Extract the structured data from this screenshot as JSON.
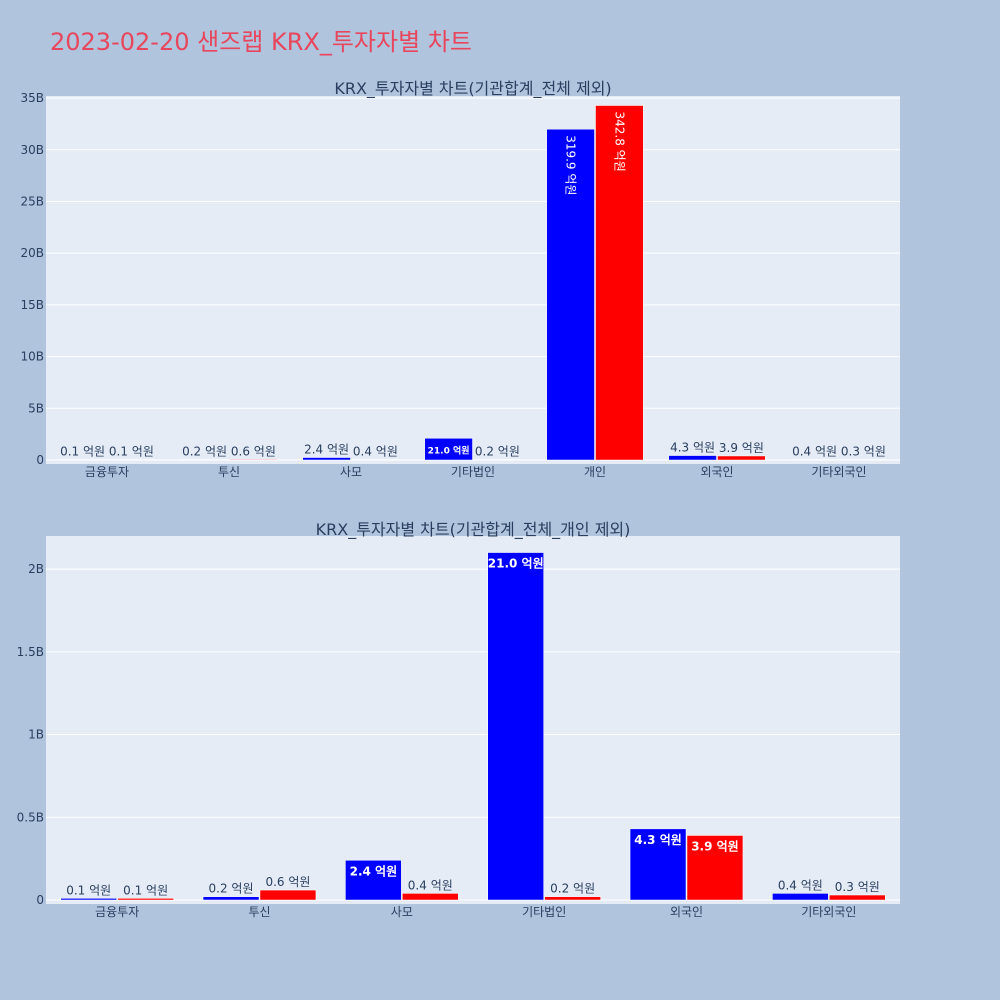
{
  "title": "2023-02-20 샌즈랩 KRX_투자자별 차트",
  "colors": {
    "background": "#b0c4de",
    "plot_bg": "#e5ecf6",
    "grid": "#ffffff",
    "title": "#e8465c",
    "text": "#2a3f5f",
    "series_a": "#0000ff",
    "series_b": "#ff0000"
  },
  "chart_data": [
    {
      "type": "bar",
      "title": "KRX_투자자별 차트(기관합계_전체 제외)",
      "categories": [
        "금융투자",
        "투신",
        "사모",
        "기타법인",
        "개인",
        "외국인",
        "기타외국인"
      ],
      "series": [
        {
          "color": "#0000ff",
          "values": [
            0.01,
            0.02,
            0.24,
            2.1,
            31.99,
            0.43,
            0.04
          ],
          "labels": [
            "0.1 억원",
            "0.2 억원",
            "2.4 억원",
            "21.0 억원",
            "319.9 억원",
            "4.3 억원",
            "0.4 억원"
          ]
        },
        {
          "color": "#ff0000",
          "values": [
            0.01,
            0.06,
            0.04,
            0.02,
            34.28,
            0.39,
            0.03
          ],
          "labels": [
            "0.1 억원",
            "0.6 억원",
            "0.4 억원",
            "0.2 억원",
            "342.8 억원",
            "3.9 억원",
            "0.3 억원"
          ]
        }
      ],
      "yticks": [
        0,
        5,
        10,
        15,
        20,
        25,
        30,
        35
      ],
      "ytick_labels": [
        "0",
        "5B",
        "10B",
        "15B",
        "20B",
        "25B",
        "30B",
        "35B"
      ],
      "ylim": [
        0,
        35.2
      ],
      "grid": true
    },
    {
      "type": "bar",
      "title": "KRX_투자자별 차트(기관합계_전체_개인 제외)",
      "categories": [
        "금융투자",
        "투신",
        "사모",
        "기타법인",
        "외국인",
        "기타외국인"
      ],
      "series": [
        {
          "color": "#0000ff",
          "values": [
            0.01,
            0.02,
            0.24,
            2.1,
            0.43,
            0.04
          ],
          "labels": [
            "0.1 억원",
            "0.2 억원",
            "2.4 억원",
            "21.0 억원",
            "4.3 억원",
            "0.4 억원"
          ]
        },
        {
          "color": "#ff0000",
          "values": [
            0.01,
            0.06,
            0.04,
            0.02,
            0.39,
            0.03
          ],
          "labels": [
            "0.1 억원",
            "0.6 억원",
            "0.4 억원",
            "0.2 억원",
            "3.9 억원",
            "0.3 억원"
          ]
        }
      ],
      "yticks": [
        0,
        0.5,
        1,
        1.5,
        2
      ],
      "ytick_labels": [
        "0",
        "0.5B",
        "1B",
        "1.5B",
        "2B"
      ],
      "ylim": [
        0,
        2.2
      ],
      "grid": true
    }
  ]
}
